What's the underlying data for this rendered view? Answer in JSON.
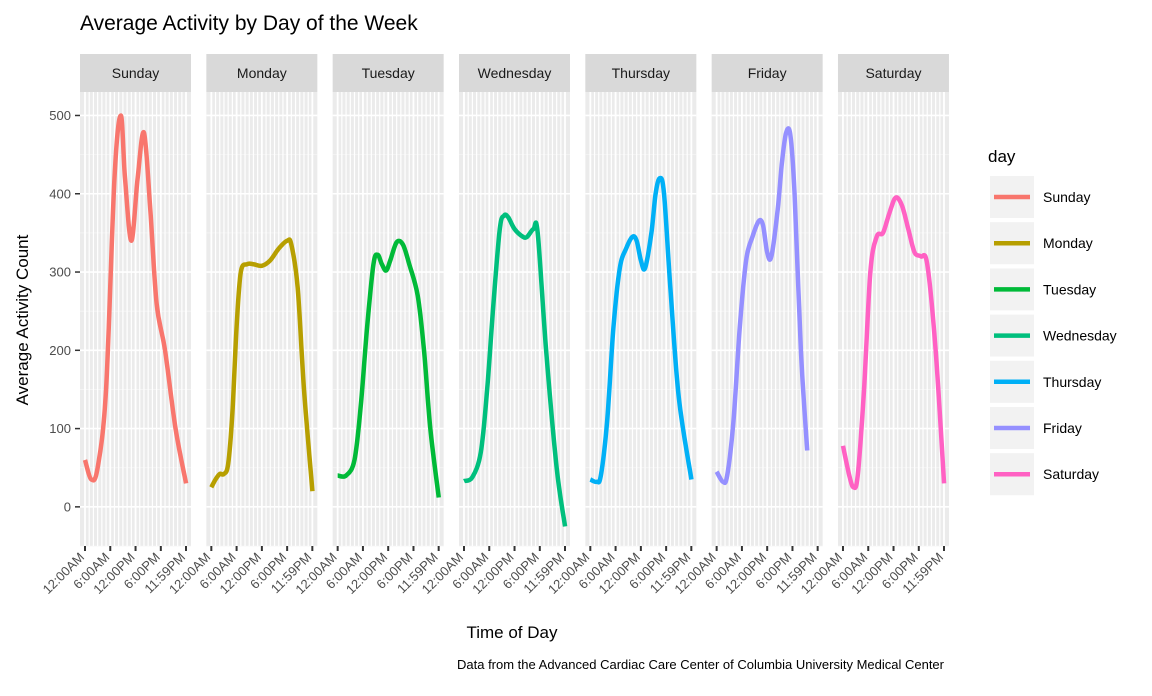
{
  "chart_data": {
    "type": "line",
    "title": "Average Activity by Day of the Week",
    "xlabel": "Time of Day",
    "ylabel": "Average Activity Count",
    "caption": "Data from the Advanced Cardiac Care Center of Columbia University Medical Center",
    "legend_title": "day",
    "legend_position": "right",
    "grid": true,
    "x_unit": "hours since midnight",
    "xlim": [
      0,
      23.98
    ],
    "ylim": [
      -50,
      530
    ],
    "y_ticks": [
      0,
      100,
      200,
      300,
      400,
      500
    ],
    "x_ticks": [
      {
        "value": 0,
        "label": "12:00AM"
      },
      {
        "value": 6,
        "label": "6:00AM"
      },
      {
        "value": 12,
        "label": "12:00PM"
      },
      {
        "value": 18,
        "label": "6:00PM"
      },
      {
        "value": 23.98,
        "label": "11:59PM"
      }
    ],
    "series": [
      {
        "name": "Sunday",
        "color": "#F8766D",
        "points": [
          [
            0,
            60
          ],
          [
            1.5,
            35
          ],
          [
            3,
            50
          ],
          [
            5,
            150
          ],
          [
            7,
            420
          ],
          [
            8.5,
            500
          ],
          [
            9.5,
            420
          ],
          [
            11,
            340
          ],
          [
            12.5,
            420
          ],
          [
            14,
            478
          ],
          [
            15.5,
            380
          ],
          [
            17,
            260
          ],
          [
            19,
            200
          ],
          [
            21.5,
            100
          ],
          [
            24,
            30
          ]
        ]
      },
      {
        "name": "Monday",
        "color": "#B79F00",
        "points": [
          [
            0,
            25
          ],
          [
            1,
            35
          ],
          [
            2,
            42
          ],
          [
            3,
            42
          ],
          [
            4,
            55
          ],
          [
            5,
            120
          ],
          [
            6,
            230
          ],
          [
            7,
            300
          ],
          [
            8.5,
            310
          ],
          [
            10,
            310
          ],
          [
            12,
            308
          ],
          [
            14,
            315
          ],
          [
            16,
            330
          ],
          [
            18,
            340
          ],
          [
            19,
            335
          ],
          [
            20.5,
            280
          ],
          [
            22,
            150
          ],
          [
            24,
            20
          ]
        ]
      },
      {
        "name": "Tuesday",
        "color": "#00BA38",
        "points": [
          [
            0,
            40
          ],
          [
            2,
            40
          ],
          [
            4,
            60
          ],
          [
            5.5,
            130
          ],
          [
            7,
            230
          ],
          [
            8.5,
            310
          ],
          [
            9.5,
            322
          ],
          [
            10.5,
            310
          ],
          [
            11.5,
            302
          ],
          [
            12.5,
            315
          ],
          [
            14,
            338
          ],
          [
            15.5,
            335
          ],
          [
            17,
            310
          ],
          [
            19,
            270
          ],
          [
            20.5,
            200
          ],
          [
            22,
            100
          ],
          [
            24,
            12
          ]
        ]
      },
      {
        "name": "Wednesday",
        "color": "#00BF7D",
        "points": [
          [
            0,
            33
          ],
          [
            2,
            38
          ],
          [
            4,
            70
          ],
          [
            5.5,
            150
          ],
          [
            7,
            260
          ],
          [
            8.5,
            355
          ],
          [
            9.5,
            372
          ],
          [
            10.5,
            370
          ],
          [
            12,
            355
          ],
          [
            14,
            345
          ],
          [
            15,
            345
          ],
          [
            16.5,
            355
          ],
          [
            17.5,
            350
          ],
          [
            19.5,
            200
          ],
          [
            22,
            50
          ],
          [
            24,
            -25
          ]
        ]
      },
      {
        "name": "Thursday",
        "color": "#00B0F6",
        "points": [
          [
            0,
            35
          ],
          [
            1.5,
            32
          ],
          [
            2.5,
            40
          ],
          [
            4,
            110
          ],
          [
            5.5,
            230
          ],
          [
            7,
            305
          ],
          [
            8.5,
            330
          ],
          [
            10,
            345
          ],
          [
            11,
            340
          ],
          [
            12,
            315
          ],
          [
            13,
            305
          ],
          [
            14.5,
            350
          ],
          [
            15.5,
            400
          ],
          [
            16.5,
            420
          ],
          [
            17.5,
            400
          ],
          [
            19,
            280
          ],
          [
            21,
            140
          ],
          [
            24,
            35
          ]
        ]
      },
      {
        "name": "Friday",
        "color": "#9590FF",
        "points": [
          [
            0,
            45
          ],
          [
            1.5,
            32
          ],
          [
            2.5,
            40
          ],
          [
            4,
            110
          ],
          [
            5.5,
            230
          ],
          [
            7,
            315
          ],
          [
            8.5,
            345
          ],
          [
            10,
            365
          ],
          [
            11,
            360
          ],
          [
            12,
            325
          ],
          [
            13,
            320
          ],
          [
            14.5,
            380
          ],
          [
            15.5,
            440
          ],
          [
            16.5,
            478
          ],
          [
            17.5,
            475
          ],
          [
            18.5,
            400
          ],
          [
            20,
            200
          ],
          [
            21.5,
            72
          ]
        ]
      },
      {
        "name": "Saturday",
        "color": "#FF61C3",
        "points": [
          [
            0,
            78
          ],
          [
            1.5,
            40
          ],
          [
            2.5,
            25
          ],
          [
            3.5,
            40
          ],
          [
            5,
            150
          ],
          [
            6.5,
            300
          ],
          [
            8,
            345
          ],
          [
            9.5,
            350
          ],
          [
            11,
            375
          ],
          [
            12.5,
            395
          ],
          [
            14,
            385
          ],
          [
            15.5,
            355
          ],
          [
            17,
            325
          ],
          [
            18.5,
            320
          ],
          [
            20,
            310
          ],
          [
            22,
            200
          ],
          [
            24,
            30
          ]
        ]
      }
    ]
  }
}
